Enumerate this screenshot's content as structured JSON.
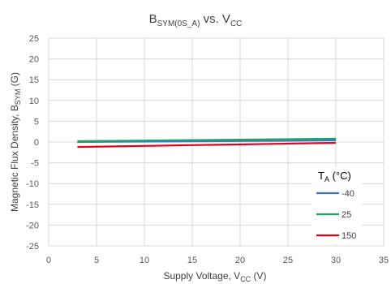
{
  "chart_data": {
    "type": "line",
    "title": {
      "main": "B",
      "main_sub": "SYM(0S_A)",
      "mid": " vs. V",
      "mid_sub": "CC"
    },
    "xlabel": {
      "pre": "Supply Voltage, V",
      "sub": "CC",
      "post": " (V)"
    },
    "ylabel": {
      "pre": "Magnetic Flux Density, B",
      "sub": "SYM",
      "post": " (G)"
    },
    "xlim": [
      0,
      35
    ],
    "ylim": [
      -25,
      25
    ],
    "xticks": [
      0,
      5,
      10,
      15,
      20,
      25,
      30,
      35
    ],
    "yticks": [
      -25,
      -20,
      -15,
      -10,
      -5,
      0,
      5,
      10,
      15,
      20,
      25
    ],
    "grid": true,
    "legend": {
      "title_pre": "T",
      "title_sub": "A",
      "title_post": " (°C)",
      "placement": "bottom-right"
    },
    "series": [
      {
        "name": "-40",
        "color": "#4472C4",
        "x": [
          3,
          30
        ],
        "y": [
          0.0,
          0.4
        ]
      },
      {
        "name": "25",
        "color": "#21A366",
        "x": [
          3,
          30
        ],
        "y": [
          0.2,
          0.8
        ]
      },
      {
        "name": "150",
        "color": "#E3001B",
        "x": [
          3,
          30
        ],
        "y": [
          -1.2,
          -0.2
        ]
      }
    ]
  }
}
